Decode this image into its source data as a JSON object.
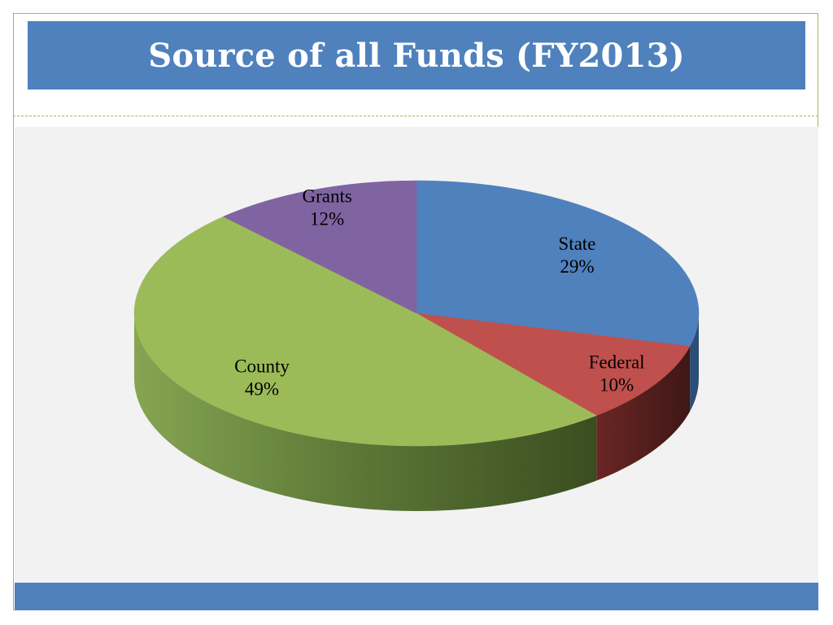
{
  "slide": {
    "title": "Source of all Funds (FY2013)"
  },
  "chart_data": {
    "type": "pie",
    "style": "3d",
    "title": "",
    "legend": "none",
    "data_labels": "category-and-percent",
    "slices": [
      {
        "name": "State",
        "percent_label": "29%",
        "value": 29,
        "color": "#4f81bd"
      },
      {
        "name": "Federal",
        "percent_label": "10%",
        "value": 10,
        "color": "#c0504d"
      },
      {
        "name": "County",
        "percent_label": "49%",
        "value": 49,
        "color": "#9bbb59"
      },
      {
        "name": "Grants",
        "percent_label": "12%",
        "value": 12,
        "color": "#8064a2"
      }
    ]
  },
  "colors": {
    "accent_blue": "#4f81bd",
    "frame_green": "#9bbb59",
    "chart_background": "#f2f2f2"
  }
}
